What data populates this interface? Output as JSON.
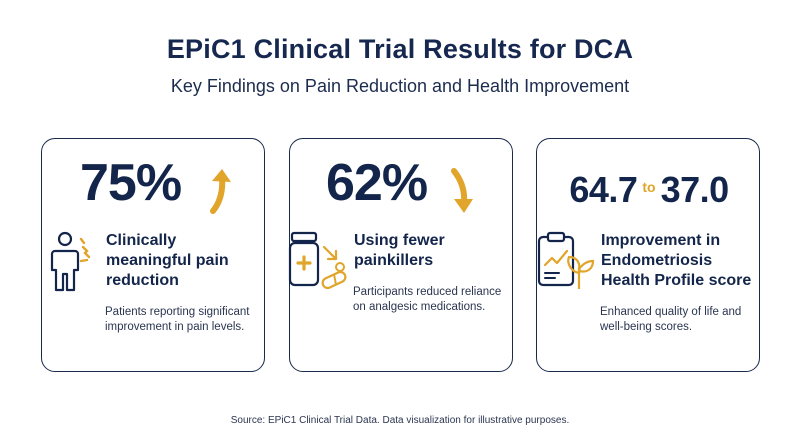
{
  "header": {
    "title": "EPiC1 Clinical Trial Results for DCA",
    "subtitle": "Key Findings on Pain Reduction and Health Improvement"
  },
  "cards": [
    {
      "stat": "75%",
      "trend_icon": "arrow-up-icon",
      "icon": "person-pain-icon",
      "heading": "Clinically meaningful pain reduction",
      "description": "Patients reporting significant improvement in pain levels."
    },
    {
      "stat": "62%",
      "trend_icon": "arrow-down-icon",
      "icon": "pill-bottle-icon",
      "heading": "Using fewer painkillers",
      "description": "Participants reduced reliance on analgesic medications."
    },
    {
      "stat_from": "64.7",
      "stat_connector": "to",
      "stat_to": "37.0",
      "icon": "clipboard-growth-icon",
      "heading": "Improvement in Endometriosis Health Profile score",
      "description": "Enhanced quality of life and well-being scores."
    }
  ],
  "footer": {
    "source": "Source: EPiC1 Clinical Trial Data. Data visualization for illustrative purposes."
  },
  "colors": {
    "navy": "#14264a",
    "accent": "#e0a52a"
  }
}
